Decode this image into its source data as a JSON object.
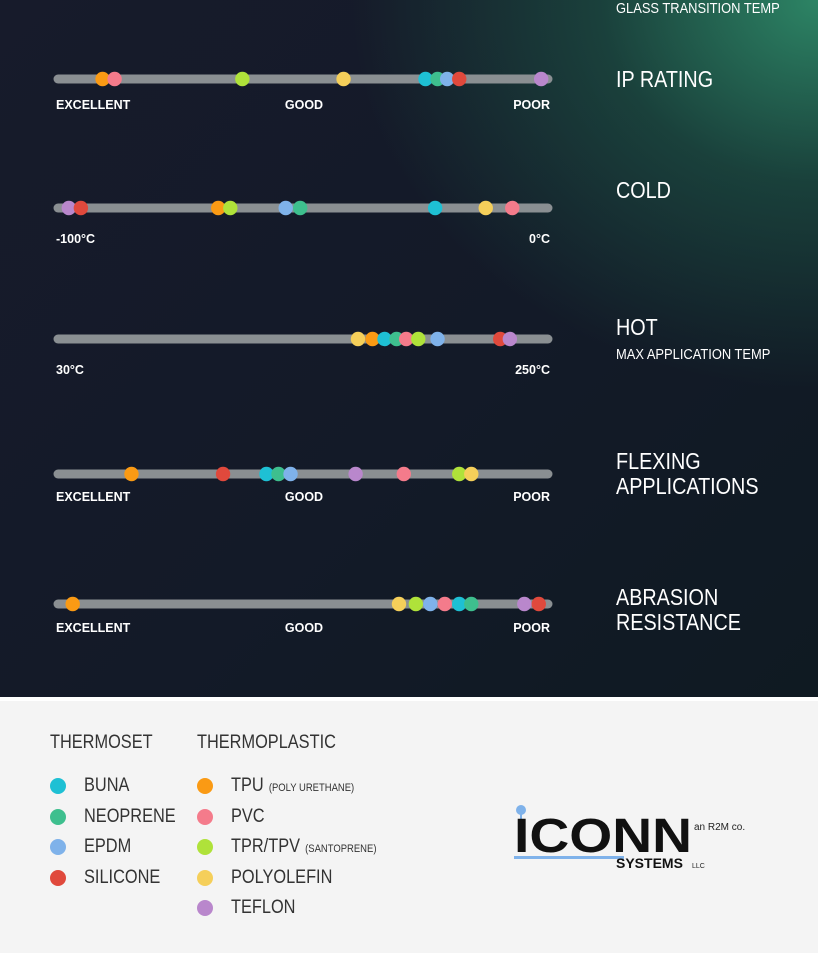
{
  "chart_data": {
    "type": "scatter",
    "materials": {
      "BUNA": "#1ec0d4",
      "NEOPRENE": "#3ebf8e",
      "EPDM": "#7fb2ea",
      "SILICONE": "#e0493c",
      "TPU": "#fa9a14",
      "PVC": "#f47b8b",
      "TPR/TPV": "#afe23a",
      "POLYOLEFIN": "#f5cf5a",
      "TEFLON": "#b987cc"
    },
    "rows": [
      {
        "title": [
          "IP RATING"
        ],
        "subtitle": "",
        "labels": {
          "left": "EXCELLENT",
          "mid": "GOOD",
          "right": "POOR"
        },
        "points": [
          {
            "material": "TPU",
            "value": 0.08
          },
          {
            "material": "PVC",
            "value": 0.105
          },
          {
            "material": "TPR/TPV",
            "value": 0.37
          },
          {
            "material": "POLYOLEFIN",
            "value": 0.58
          },
          {
            "material": "BUNA",
            "value": 0.75
          },
          {
            "material": "NEOPRENE",
            "value": 0.775
          },
          {
            "material": "EPDM",
            "value": 0.795
          },
          {
            "material": "SILICONE",
            "value": 0.82
          },
          {
            "material": "TEFLON",
            "value": 0.99
          }
        ]
      },
      {
        "title": [
          "COLD"
        ],
        "subtitle": "GLASS TRANSITION TEMP",
        "labels": {
          "left": "-100°C",
          "mid": "",
          "right": "0°C"
        },
        "points": [
          {
            "material": "TEFLON",
            "value": 0.01
          },
          {
            "material": "SILICONE",
            "value": 0.035
          },
          {
            "material": "TPU",
            "value": 0.32
          },
          {
            "material": "TPR/TPV",
            "value": 0.345
          },
          {
            "material": "EPDM",
            "value": 0.46
          },
          {
            "material": "NEOPRENE",
            "value": 0.49
          },
          {
            "material": "BUNA",
            "value": 0.77
          },
          {
            "material": "POLYOLEFIN",
            "value": 0.875
          },
          {
            "material": "PVC",
            "value": 0.93
          }
        ]
      },
      {
        "title": [
          "HOT"
        ],
        "subtitle": "MAX APPLICATION TEMP",
        "labels": {
          "left": "30°C",
          "mid": "",
          "right": "250°C"
        },
        "points": [
          {
            "material": "POLYOLEFIN",
            "value": 0.61
          },
          {
            "material": "TPU",
            "value": 0.64
          },
          {
            "material": "BUNA",
            "value": 0.665
          },
          {
            "material": "NEOPRENE",
            "value": 0.69
          },
          {
            "material": "PVC",
            "value": 0.71
          },
          {
            "material": "TPR/TPV",
            "value": 0.735
          },
          {
            "material": "EPDM",
            "value": 0.775
          },
          {
            "material": "SILICONE",
            "value": 0.905
          },
          {
            "material": "TEFLON",
            "value": 0.925
          }
        ]
      },
      {
        "title": [
          "FLEXING",
          "APPLICATIONS"
        ],
        "subtitle": "",
        "labels": {
          "left": "EXCELLENT",
          "mid": "GOOD",
          "right": "POOR"
        },
        "points": [
          {
            "material": "TPU",
            "value": 0.14
          },
          {
            "material": "SILICONE",
            "value": 0.33
          },
          {
            "material": "BUNA",
            "value": 0.42
          },
          {
            "material": "NEOPRENE",
            "value": 0.445
          },
          {
            "material": "EPDM",
            "value": 0.47
          },
          {
            "material": "TEFLON",
            "value": 0.605
          },
          {
            "material": "PVC",
            "value": 0.705
          },
          {
            "material": "TPR/TPV",
            "value": 0.82
          },
          {
            "material": "POLYOLEFIN",
            "value": 0.845
          }
        ]
      },
      {
        "title": [
          "ABRASION",
          "RESISTANCE"
        ],
        "subtitle": "",
        "labels": {
          "left": "EXCELLENT",
          "mid": "GOOD",
          "right": "POOR"
        },
        "points": [
          {
            "material": "TPU",
            "value": 0.018
          },
          {
            "material": "POLYOLEFIN",
            "value": 0.695
          },
          {
            "material": "TPR/TPV",
            "value": 0.73
          },
          {
            "material": "EPDM",
            "value": 0.76
          },
          {
            "material": "PVC",
            "value": 0.79
          },
          {
            "material": "BUNA",
            "value": 0.82
          },
          {
            "material": "NEOPRENE",
            "value": 0.845
          },
          {
            "material": "TEFLON",
            "value": 0.955
          },
          {
            "material": "SILICONE",
            "value": 0.985
          }
        ]
      }
    ]
  },
  "legend": {
    "thermoset": {
      "heading": "THERMOSET",
      "items": [
        {
          "label": "BUNA",
          "note": "",
          "color": "#1ec0d4"
        },
        {
          "label": "NEOPRENE",
          "note": "",
          "color": "#3ebf8e"
        },
        {
          "label": "EPDM",
          "note": "",
          "color": "#7fb2ea"
        },
        {
          "label": "SILICONE",
          "note": "",
          "color": "#e0493c"
        }
      ]
    },
    "thermoplastic": {
      "heading": "THERMOPLASTIC",
      "items": [
        {
          "label": "TPU",
          "note": "(POLY URETHANE)",
          "color": "#fa9a14"
        },
        {
          "label": "PVC",
          "note": "",
          "color": "#f47b8b"
        },
        {
          "label": "TPR/TPV",
          "note": "(SANTOPRENE)",
          "color": "#afe23a"
        },
        {
          "label": "POLYOLEFIN",
          "note": "",
          "color": "#f5cf5a"
        },
        {
          "label": "TEFLON",
          "note": "",
          "color": "#b987cc"
        }
      ]
    }
  },
  "logo": {
    "wordmark": "ICONN",
    "tagline": "an R2M co.",
    "subtext": "SYSTEMS",
    "suffix": "LLC",
    "accent": "#7fb2ea"
  }
}
